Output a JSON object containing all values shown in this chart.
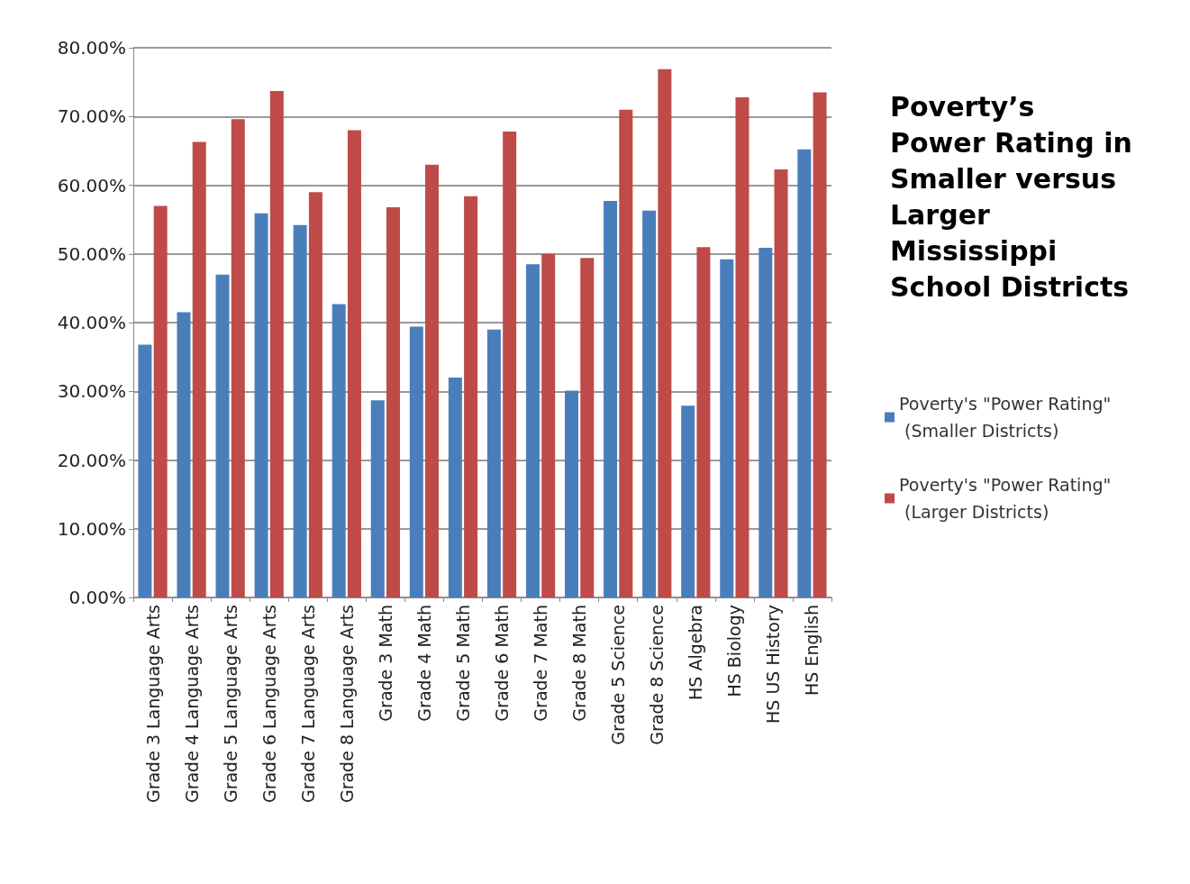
{
  "chart_data": {
    "type": "bar",
    "title": "Poverty’s Power Rating in Smaller versus Larger Mississippi School Districts",
    "categories": [
      "Grade 3 Language Arts",
      "Grade 4 Language Arts",
      "Grade 5 Language Arts",
      "Grade 6 Language Arts",
      "Grade 7 Language Arts",
      "Grade 8 Language Arts",
      "Grade 3 Math",
      "Grade 4 Math",
      "Grade 5 Math",
      "Grade 6 Math",
      "Grade 7 Math",
      "Grade 8 Math",
      "Grade 5 Science",
      "Grade 8 Science",
      "HS Algebra",
      "HS Biology",
      "HS US History",
      "HS English"
    ],
    "series": [
      {
        "name": "Poverty's \"Power Rating\" (Smaller Districts)",
        "color": "#4a7ebb",
        "values": [
          36.8,
          41.5,
          47,
          55.9,
          54.2,
          42.7,
          28.7,
          39.4,
          32,
          39,
          48.5,
          30.1,
          57.7,
          56.3,
          27.9,
          49.2,
          50.9,
          65.2
        ]
      },
      {
        "name": "Poverty's \"Power Rating\" (Larger Districts)",
        "color": "#be4b48",
        "values": [
          57,
          66.3,
          69.6,
          73.7,
          59,
          68,
          56.8,
          63,
          58.4,
          67.8,
          50,
          49.4,
          71,
          76.9,
          51,
          72.8,
          62.3,
          73.5
        ]
      }
    ],
    "ylim": [
      0,
      80
    ],
    "yticks": [
      {
        "value": 0,
        "label": "0.00%"
      },
      {
        "value": 10,
        "label": "10.00%"
      },
      {
        "value": 20,
        "label": "20.00%"
      },
      {
        "value": 30,
        "label": "30.00%"
      },
      {
        "value": 40,
        "label": "40.00%"
      },
      {
        "value": 50,
        "label": "50.00%"
      },
      {
        "value": 60,
        "label": "60.00%"
      },
      {
        "value": 70,
        "label": "70.00%"
      },
      {
        "value": 80,
        "label": "80.00%"
      }
    ],
    "grid": "y",
    "legend": "right"
  }
}
